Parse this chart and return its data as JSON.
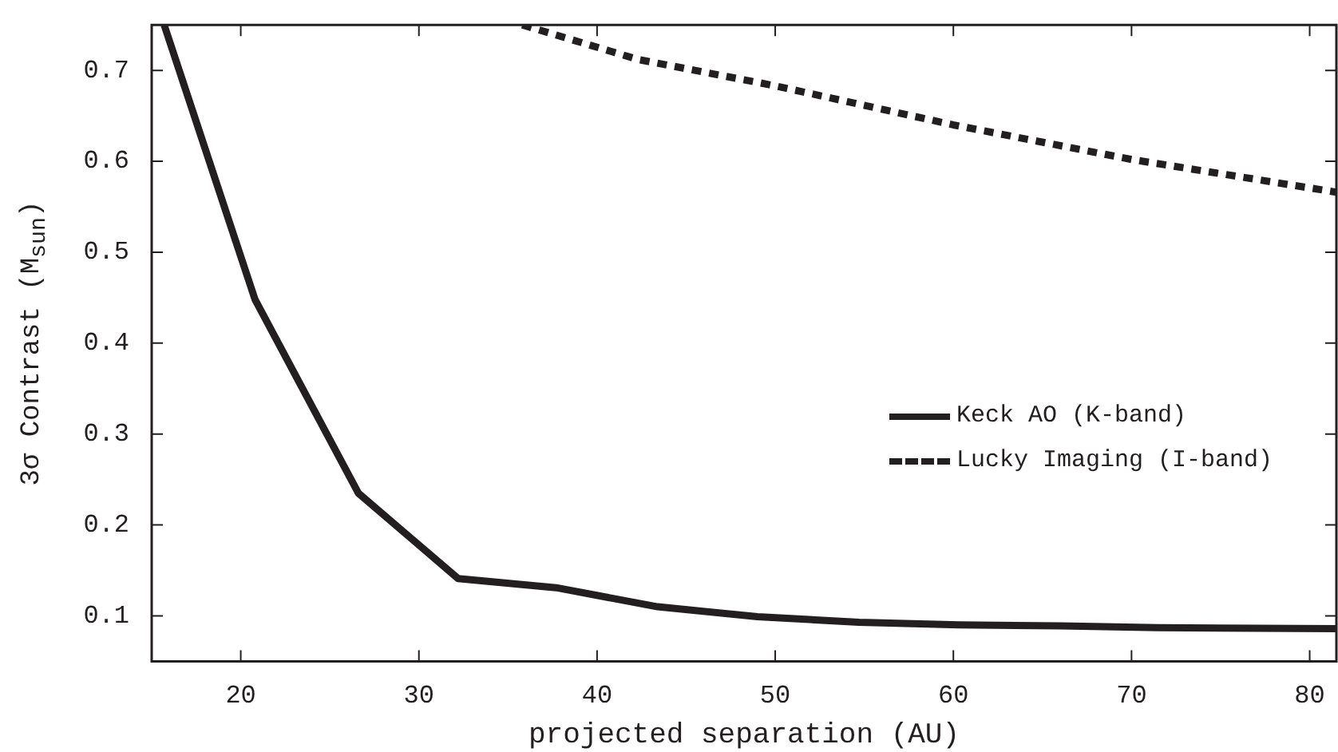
{
  "chart_data": {
    "type": "line",
    "xlabel": "projected separation (AU)",
    "ylabel": "3σ Contrast (M$_{sun}$)",
    "xlim": [
      15,
      81.5
    ],
    "xticks": [
      20,
      30,
      40,
      50,
      60,
      70,
      80
    ],
    "ylim": [
      0.05,
      0.75
    ],
    "yticks": [
      0.1,
      0.2,
      0.3,
      0.4,
      0.5,
      0.6,
      0.7
    ],
    "grid": false,
    "legend": "right",
    "marker": "none",
    "series": [
      {
        "name": "Keck AO (K-band)",
        "color": "#231f20",
        "line_style": "solid",
        "x": [
          15.7,
          20.8,
          26.6,
          32.2,
          37.7,
          43.4,
          49,
          54.7,
          60.3,
          66,
          71.5,
          81.5
        ],
        "values": [
          0.75,
          0.448,
          0.235,
          0.141,
          0.131,
          0.11,
          0.099,
          0.093,
          0.09,
          0.089,
          0.087,
          0.086
        ]
      },
      {
        "name": "Lucky Imaging (I-band)",
        "color": "#231f20",
        "line_style": "dashed",
        "x": [
          35.8,
          42.3,
          50,
          60,
          70,
          81.5
        ],
        "values": [
          0.75,
          0.712,
          0.683,
          0.64,
          0.602,
          0.566
        ]
      }
    ]
  }
}
